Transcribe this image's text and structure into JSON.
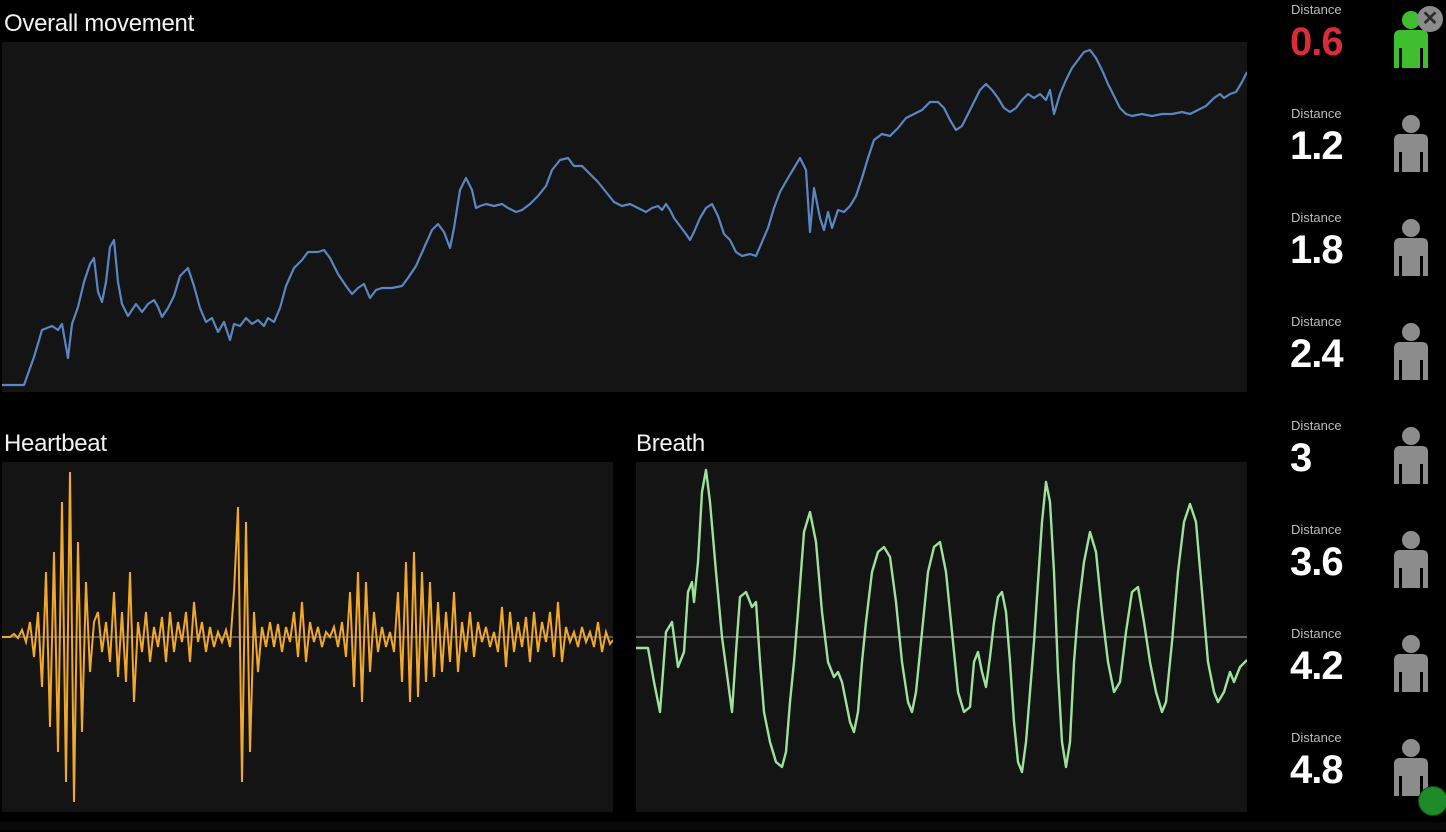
{
  "panels": {
    "movement": {
      "title": "Overall movement",
      "color": "#5a86c4"
    },
    "heartbeat": {
      "title": "Heartbeat",
      "color": "#f0a830"
    },
    "breath": {
      "title": "Breath",
      "color": "#9de29b"
    }
  },
  "distances": [
    {
      "label": "Distance",
      "value": "0.6",
      "value_color": "#d92b3a",
      "person_color": "#3fbf2f",
      "person_icon": "person-icon"
    },
    {
      "label": "Distance",
      "value": "1.2",
      "value_color": "#ffffff",
      "person_color": "#8c8c8c",
      "person_icon": "person-icon"
    },
    {
      "label": "Distance",
      "value": "1.8",
      "value_color": "#ffffff",
      "person_color": "#8c8c8c",
      "person_icon": "person-icon"
    },
    {
      "label": "Distance",
      "value": "2.4",
      "value_color": "#ffffff",
      "person_color": "#8c8c8c",
      "person_icon": "person-icon"
    },
    {
      "label": "Distance",
      "value": "3",
      "value_color": "#ffffff",
      "person_color": "#8c8c8c",
      "person_icon": "person-icon"
    },
    {
      "label": "Distance",
      "value": "3.6",
      "value_color": "#ffffff",
      "person_color": "#8c8c8c",
      "person_icon": "person-icon"
    },
    {
      "label": "Distance",
      "value": "4.2",
      "value_color": "#ffffff",
      "person_color": "#8c8c8c",
      "person_icon": "person-icon"
    },
    {
      "label": "Distance",
      "value": "4.8",
      "value_color": "#ffffff",
      "person_color": "#8c8c8c",
      "person_icon": "person-icon"
    }
  ],
  "controls": {
    "close_icon": "close-icon",
    "close_glyph": "✕",
    "status_icon": "status-dot-icon",
    "status_color": "#1f8a2a"
  }
}
